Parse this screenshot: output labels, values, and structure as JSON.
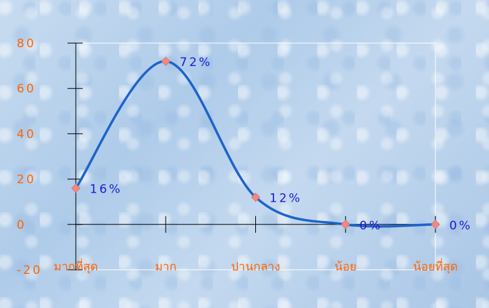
{
  "chart_data": {
    "type": "line",
    "categories": [
      "มากที่สุด",
      "มาก",
      "ปานกลาง",
      "น้อย",
      "น้อยที่สุด"
    ],
    "series": [
      {
        "values": [
          16,
          72,
          12,
          0,
          0
        ],
        "labels": [
          "16%",
          "72%",
          "12%",
          "0%",
          "0%"
        ]
      }
    ],
    "yticks": [
      "80",
      "60",
      "40",
      "20",
      "0",
      "-20"
    ],
    "ylim": [
      -20,
      80
    ],
    "smooth": true,
    "grid": false,
    "line_color": "#1f63c9",
    "marker_color": "#f08a80",
    "tick_color": "#ff6600",
    "label_color": "#1a1ad6"
  }
}
